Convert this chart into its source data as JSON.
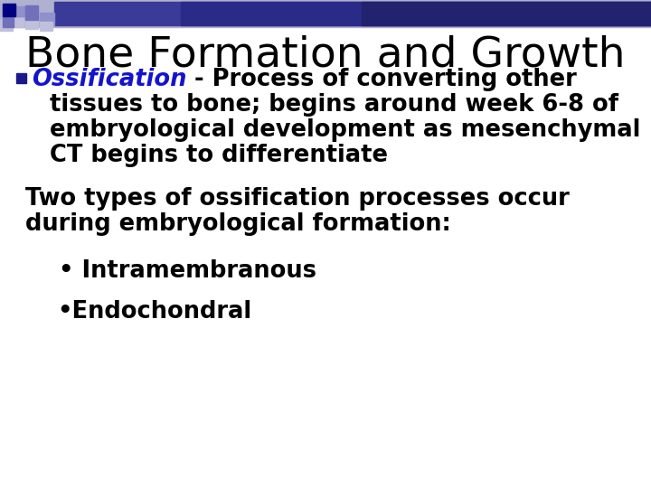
{
  "title": "Bone Formation and Growth",
  "title_fontsize": 34,
  "title_color": "#000000",
  "bg_color": "#ffffff",
  "ossification_color": "#1414cc",
  "body_color": "#000000",
  "body_fontsize": 18.5,
  "bullet_text_line1_italic": "Ossification",
  "bullet_text_line1_rest": " - Process of converting other",
  "bullet_text_line2": "tissues to bone; begins around week 6-8 of",
  "bullet_text_line3": "embryological development as mesenchymal",
  "bullet_text_line4": "CT begins to differentiate",
  "para2_line1": "Two types of ossification processes occur",
  "para2_line2": "during embryological formation:",
  "sub1": "• Intramembranous",
  "sub2": "•Endochondral",
  "sq_dark": "#000080",
  "sq_med1": "#7070bb",
  "sq_med2": "#9090cc",
  "sq_light": "#c0c0dd",
  "banner_color": "#3a3a99",
  "banner_light": "#b0b0d0"
}
